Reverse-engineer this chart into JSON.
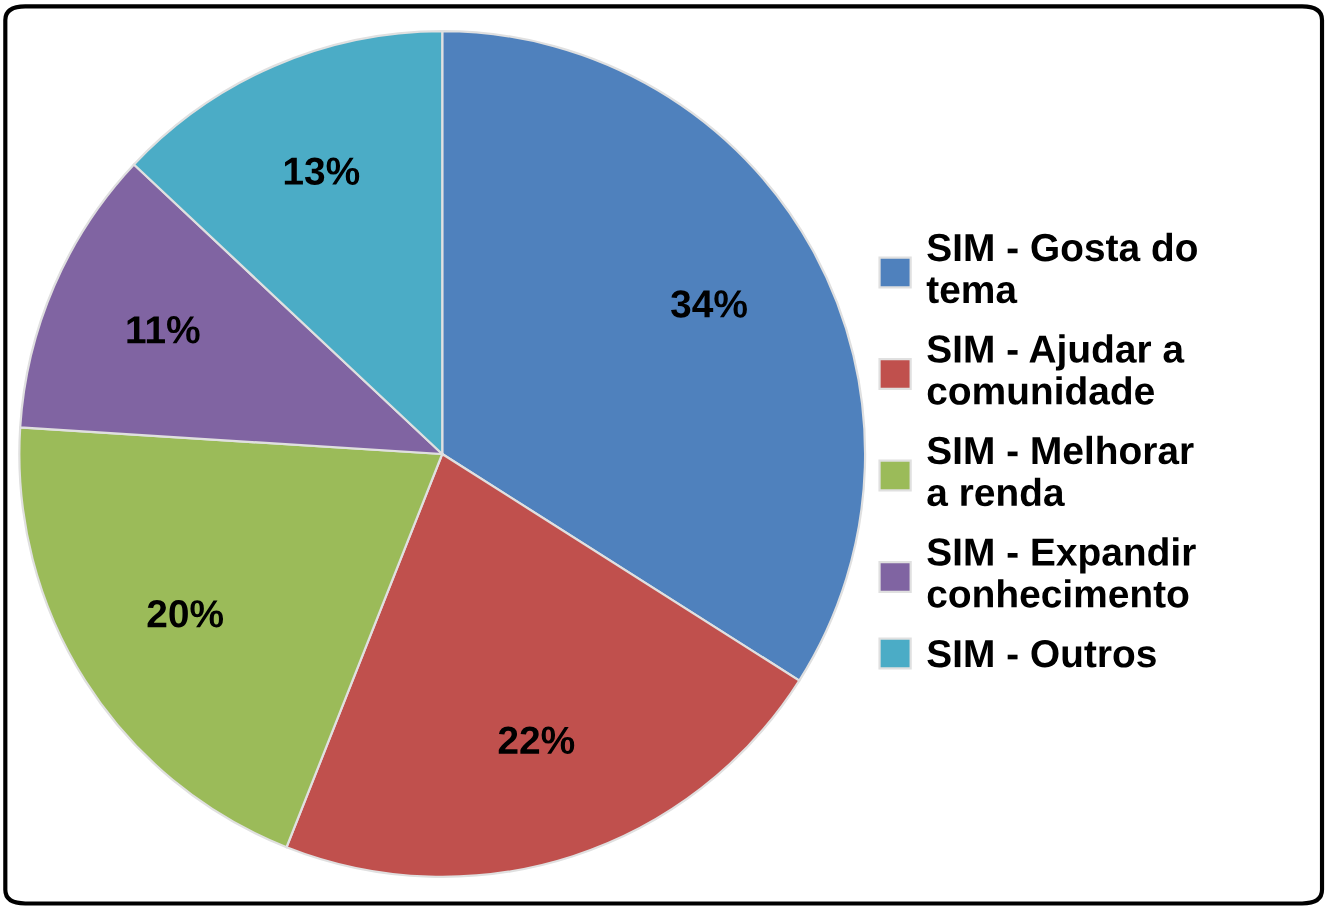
{
  "chart_data": {
    "type": "pie",
    "categories": [
      "SIM - Gosta do\ntema",
      "SIM - Ajudar a\ncomunidade",
      "SIM - Melhorar\na renda",
      "SIM - Expandir\nconhecimento",
      "SIM - Outros"
    ],
    "values": [
      34,
      22,
      20,
      11,
      13
    ],
    "colors": [
      "#4f81bd",
      "#c0504d",
      "#9bbb59",
      "#8064a2",
      "#4bacc6"
    ],
    "value_labels": [
      "34%",
      "22%",
      "20%",
      "11%",
      "13%"
    ],
    "legend": "right"
  }
}
